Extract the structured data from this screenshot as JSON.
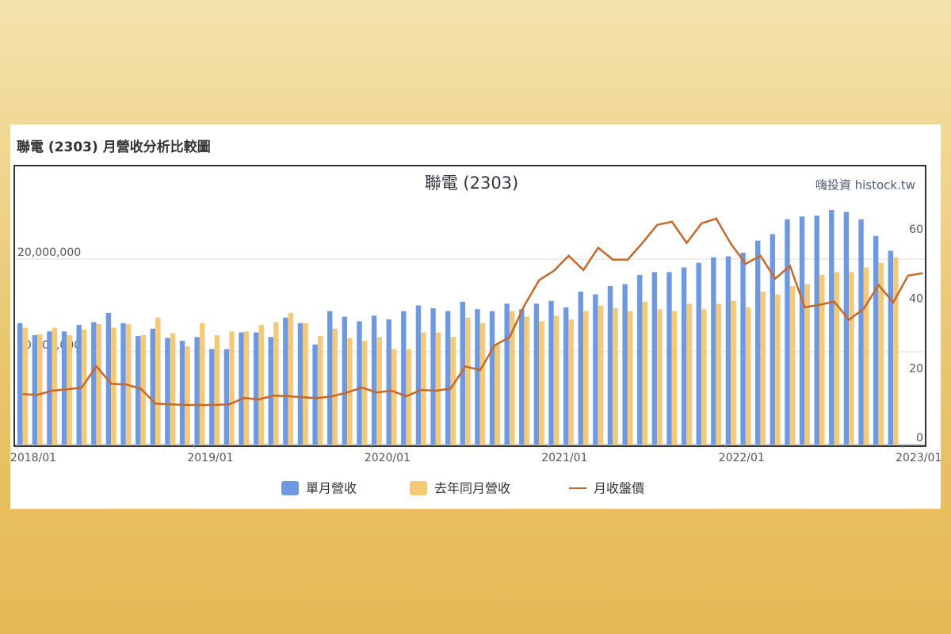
{
  "panel_title": "聯電 (2303) 月營收分析比較圖",
  "chart_data": {
    "type": "bar",
    "title": "聯電 (2303)",
    "watermark": "嗨投資 histock.tw",
    "categories": [
      "2018/01",
      null,
      null,
      null,
      null,
      null,
      null,
      null,
      null,
      null,
      null,
      null,
      "2019/01",
      null,
      null,
      null,
      null,
      null,
      null,
      null,
      null,
      null,
      null,
      null,
      "2020/01",
      null,
      null,
      null,
      null,
      null,
      null,
      null,
      null,
      null,
      null,
      null,
      "2021/01",
      null,
      null,
      null,
      null,
      null,
      null,
      null,
      null,
      null,
      null,
      null,
      "2022/01",
      null,
      null,
      null,
      null,
      null,
      null,
      null,
      null,
      null,
      null,
      null,
      "2023/01",
      null
    ],
    "series": [
      {
        "name": "單月營收",
        "color": "#6e98e0",
        "values": [
          13100000,
          11800000,
          12200000,
          12200000,
          12900000,
          13200000,
          14200000,
          13100000,
          11700000,
          12500000,
          11500000,
          11200000,
          11600000,
          10300000,
          10300000,
          12100000,
          12100000,
          11600000,
          13700000,
          13100000,
          10800000,
          14400000,
          13800000,
          13300000,
          13900000,
          13500000,
          14400000,
          15000000,
          14700000,
          14400000,
          15400000,
          14600000,
          14400000,
          15200000,
          14600000,
          15200000,
          15500000,
          14800000,
          16500000,
          16200000,
          17100000,
          17300000,
          18300000,
          18600000,
          18600000,
          19100000,
          19600000,
          20200000,
          20300000,
          20700000,
          22000000,
          22700000,
          24300000,
          24600000,
          24700000,
          25300000,
          25100000,
          24300000,
          22500000,
          20900000,
          null,
          null
        ]
      },
      {
        "name": "去年同月營收",
        "color": "#f5c977",
        "values": [
          12600000,
          11900000,
          12600000,
          11800000,
          12400000,
          13000000,
          12600000,
          13000000,
          11800000,
          13700000,
          12000000,
          10600000,
          13100000,
          11800000,
          12200000,
          12200000,
          12900000,
          13200000,
          14200000,
          13100000,
          11700000,
          12500000,
          11500000,
          11200000,
          11600000,
          10300000,
          10300000,
          12100000,
          12100000,
          11600000,
          13700000,
          13100000,
          10800000,
          14400000,
          13800000,
          13300000,
          13900000,
          13500000,
          14400000,
          15000000,
          14700000,
          14400000,
          15400000,
          14600000,
          14400000,
          15200000,
          14600000,
          15200000,
          15500000,
          14800000,
          16500000,
          16200000,
          17100000,
          17300000,
          18300000,
          18600000,
          18600000,
          19100000,
          19600000,
          20200000,
          null,
          null
        ]
      },
      {
        "name": "月收盤價",
        "type": "line",
        "axis": "y2",
        "color": "#c8672a",
        "values": [
          14.5,
          14.3,
          15.5,
          15.9,
          16.4,
          22.5,
          17.5,
          17.3,
          16.1,
          11.8,
          11.6,
          11.4,
          11.4,
          11.4,
          11.6,
          13.4,
          13.0,
          14.1,
          13.9,
          13.6,
          13.4,
          13.9,
          15.0,
          16.4,
          15.0,
          15.5,
          13.9,
          15.7,
          15.5,
          16.1,
          22.5,
          21.4,
          28.6,
          30.9,
          40.0,
          47.3,
          50.0,
          54.3,
          50.2,
          56.6,
          53.2,
          53.2,
          58.0,
          63.2,
          64.1,
          58.0,
          63.6,
          65.0,
          57.7,
          52.0,
          54.3,
          47.7,
          51.4,
          39.5,
          40.2,
          41.1,
          35.9,
          39.1,
          45.9,
          40.9,
          48.6,
          49.3
        ]
      }
    ],
    "ylim": [
      0,
      30000000
    ],
    "yticks": [
      0,
      {
        "value": 10000000,
        "label": "10,000,000"
      },
      {
        "value": 20000000,
        "label": "20,000,000"
      }
    ],
    "y2lim": [
      0,
      80
    ],
    "y2ticks": [
      0,
      20,
      40,
      60
    ],
    "grid": true
  }
}
